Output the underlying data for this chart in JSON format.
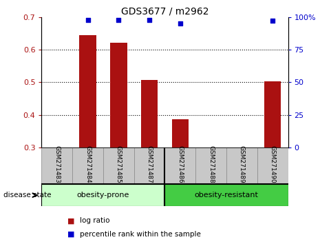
{
  "title": "GDS3677 / m2962",
  "samples": [
    "GSM271483",
    "GSM271484",
    "GSM271485",
    "GSM271487",
    "GSM271486",
    "GSM271488",
    "GSM271489",
    "GSM271490"
  ],
  "log_ratio": [
    null,
    0.645,
    0.622,
    0.508,
    0.387,
    null,
    null,
    0.503
  ],
  "percentile_rank": [
    null,
    98,
    98,
    98,
    95,
    null,
    null,
    97
  ],
  "group1_label": "obesity-prone",
  "group1_indices": [
    0,
    1,
    2,
    3
  ],
  "group2_label": "obesity-resistant",
  "group2_indices": [
    4,
    5,
    6,
    7
  ],
  "disease_state_label": "disease state",
  "ylim_left": [
    0.3,
    0.7
  ],
  "ylim_right": [
    0,
    100
  ],
  "yticks_left": [
    0.3,
    0.4,
    0.5,
    0.6,
    0.7
  ],
  "yticks_right": [
    0,
    25,
    50,
    75,
    100
  ],
  "bar_color": "#AA1111",
  "scatter_color": "#0000CC",
  "group1_bg": "#CCFFCC",
  "group2_bg": "#44CC44",
  "tick_bg": "#C8C8C8",
  "title_fontsize": 10,
  "axis_label_fontsize": 8,
  "sample_fontsize": 6.5,
  "group_fontsize": 8,
  "legend_fontsize": 7.5,
  "disease_state_fontsize": 7.5
}
